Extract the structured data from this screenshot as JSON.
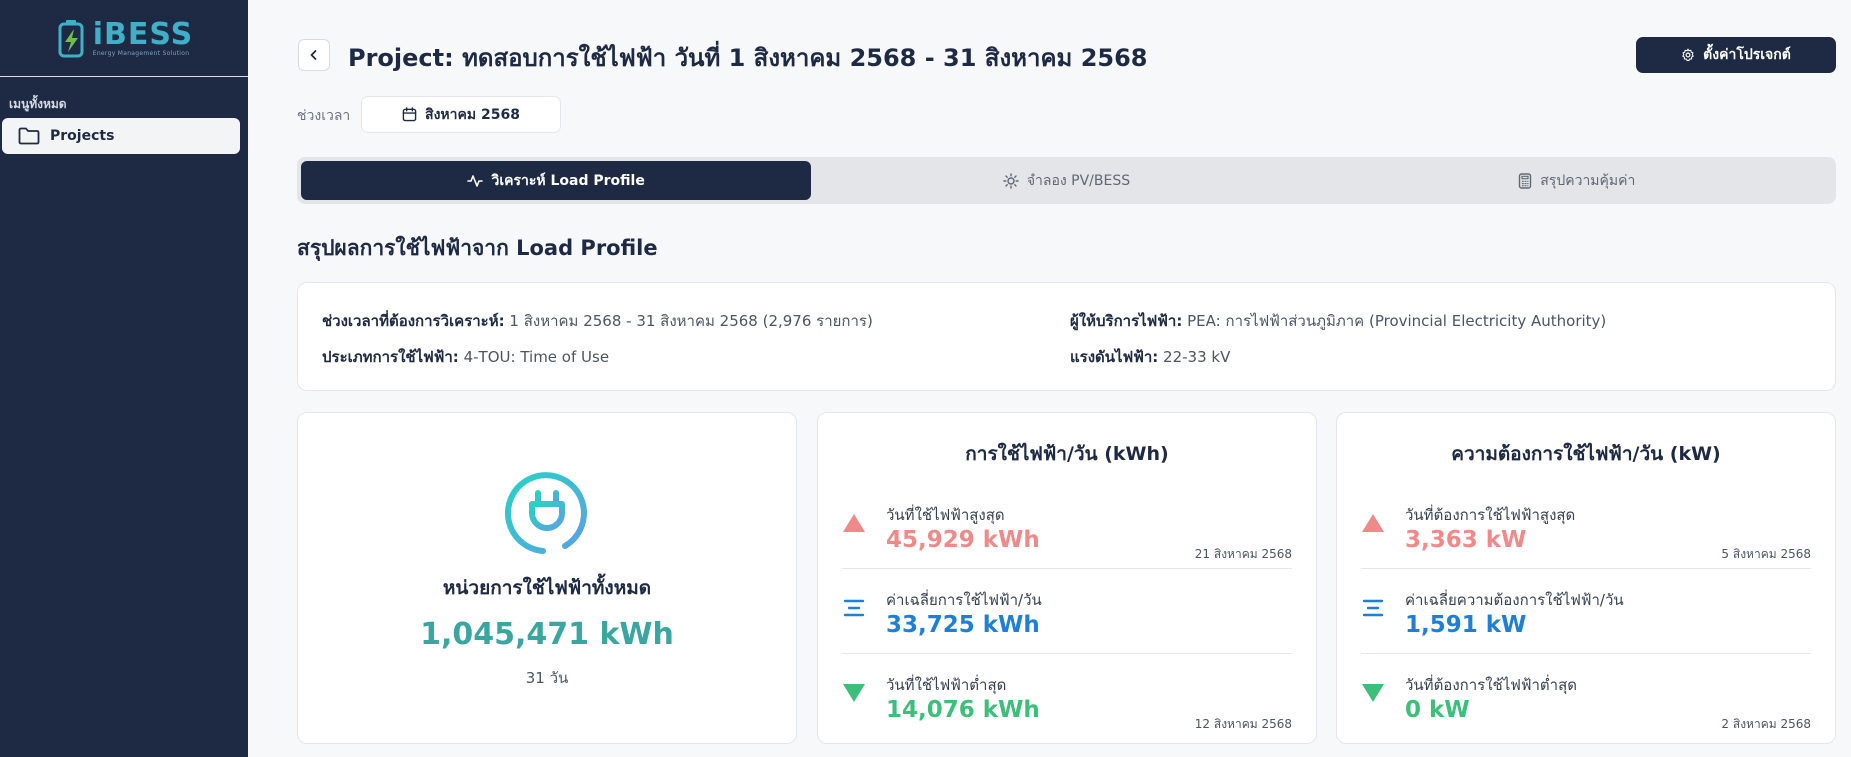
{
  "sidebar": {
    "logo_text": "iBESS",
    "logo_subtitle": "Energy Management Solution",
    "menu_heading": "เมนูทั้งหมด",
    "items": [
      {
        "label": "Projects",
        "icon": "folder-icon"
      }
    ]
  },
  "header": {
    "title": "Project: ทดสอบการใช้ไฟฟ้า วันที่ 1 สิงหาคม 2568 - 31 สิงหาคม 2568",
    "settings_label": "ตั้งค่าโปรเจกต์"
  },
  "period": {
    "label": "ช่วงเวลา",
    "value": "สิงหาคม 2568"
  },
  "tabs": [
    {
      "label": "วิเคราะห์ Load Profile",
      "icon": "activity-icon",
      "active": true
    },
    {
      "label": "จำลอง PV/BESS",
      "icon": "sun-icon",
      "active": false
    },
    {
      "label": "สรุปความคุ้มค่า",
      "icon": "calculator-icon",
      "active": false
    }
  ],
  "section_title": "สรุปผลการใช้ไฟฟ้าจาก Load Profile",
  "info": {
    "period_key": "ช่วงเวลาที่ต้องการวิเคราะห์:",
    "period_value": "1 สิงหาคม 2568 - 31 สิงหาคม 2568 (2,976 รายการ)",
    "type_key": "ประเภทการใช้ไฟฟ้า:",
    "type_value": "4-TOU: Time of Use",
    "provider_key": "ผู้ให้บริการไฟฟ้า:",
    "provider_value": "PEA: การไฟฟ้าส่วนภูมิภาค (Provincial Electricity Authority)",
    "voltage_key": "แรงดันไฟฟ้า:",
    "voltage_value": "22-33 kV"
  },
  "total": {
    "label": "หน่วยการใช้ไฟฟ้าทั้งหมด",
    "value": "1,045,471 kWh",
    "days": "31 วัน"
  },
  "energy": {
    "title": "การใช้ไฟฟ้า/วัน (kWh)",
    "max_label": "วันที่ใช้ไฟฟ้าสูงสุด",
    "max_value": "45,929 kWh",
    "max_date": "21 สิงหาคม 2568",
    "avg_label": "ค่าเฉลี่ยการใช้ไฟฟ้า/วัน",
    "avg_value": "33,725 kWh",
    "min_label": "วันที่ใช้ไฟฟ้าต่ำสุด",
    "min_value": "14,076 kWh",
    "min_date": "12 สิงหาคม 2568"
  },
  "demand": {
    "title": "ความต้องการใช้ไฟฟ้า/วัน (kW)",
    "max_label": "วันที่ต้องการใช้ไฟฟ้าสูงสุด",
    "max_value": "3,363 kW",
    "max_date": "5 สิงหาคม 2568",
    "avg_label": "ค่าเฉลี่ยความต้องการใช้ไฟฟ้า/วัน",
    "avg_value": "1,591 kW",
    "min_label": "วันที่ต้องการใช้ไฟฟ้าต่ำสุด",
    "min_value": "0 kW",
    "min_date": "2 สิงหาคม 2568"
  },
  "colors": {
    "sidebar": "#1e2a44",
    "high": "#f08a8a",
    "average": "#1f7fd6",
    "low": "#3cbf7a",
    "total": "#3aa6a0"
  }
}
